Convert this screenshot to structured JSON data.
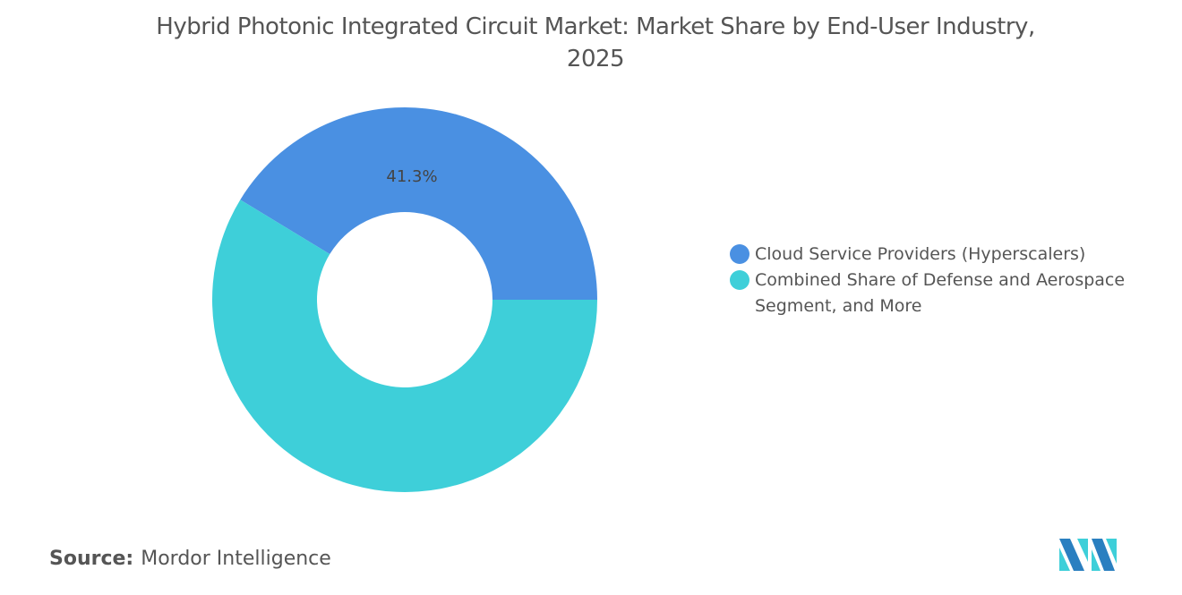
{
  "chart_data": {
    "type": "pie",
    "donut": true,
    "title": "Hybrid Photonic Integrated Circuit Market: Market Share by End-User Industry, 2025",
    "categories": [
      "Cloud Service Providers (Hyperscalers)",
      "Combined Share of Defense and Aerospace Segment, and More"
    ],
    "values": [
      41.3,
      58.7
    ],
    "data_labels": [
      "41.3%",
      ""
    ],
    "colors": [
      "#4a90e2",
      "#3ecfd9"
    ],
    "legend_position": "right"
  },
  "source": {
    "label": "Source:",
    "value": "Mordor Intelligence"
  }
}
